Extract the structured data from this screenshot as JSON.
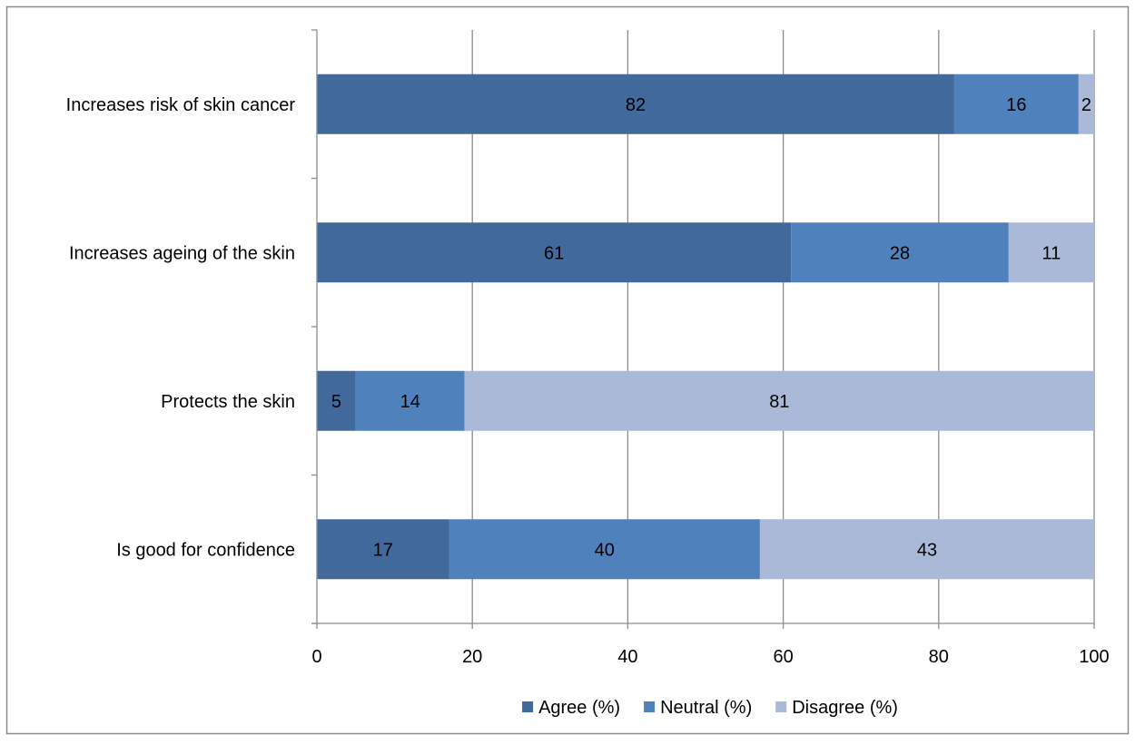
{
  "chart_data": {
    "type": "bar",
    "orientation": "horizontal",
    "stacked": true,
    "categories": [
      "Increases risk of skin cancer",
      "Increases ageing of the skin",
      "Protects the skin",
      "Is good for confidence"
    ],
    "series": [
      {
        "name": "Agree (%)",
        "values": [
          82,
          61,
          5,
          17
        ],
        "color": "#41699B"
      },
      {
        "name": "Neutral (%)",
        "values": [
          16,
          28,
          14,
          40
        ],
        "color": "#4F81BD"
      },
      {
        "name": "Disagree (%)",
        "values": [
          2,
          11,
          81,
          43
        ],
        "color": "#AAB9D7"
      }
    ],
    "xlim": [
      0,
      100
    ],
    "xticks": [
      0,
      20,
      40,
      60,
      80,
      100
    ],
    "grid": "vertical",
    "legend_position": "bottom",
    "data_labels": true,
    "title": "",
    "xlabel": "",
    "ylabel": ""
  }
}
